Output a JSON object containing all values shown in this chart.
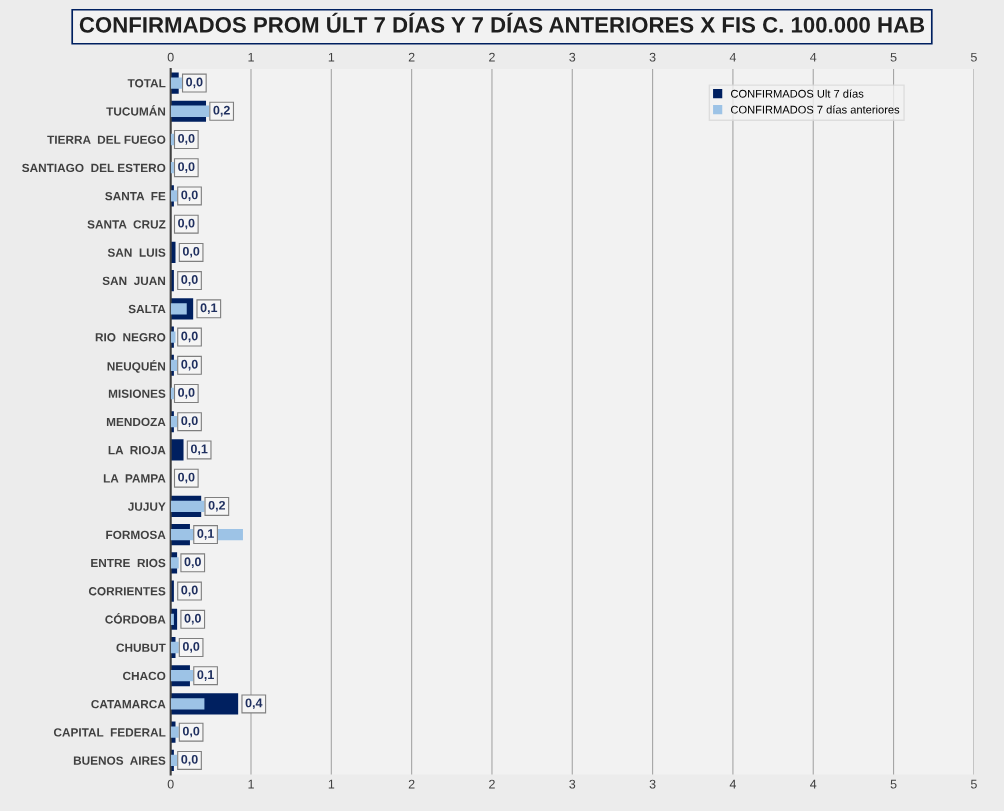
{
  "chart_data": {
    "type": "bar",
    "orientation": "horizontal",
    "title": "CONFIRMADOS PROM ÚLT 7 DÍAS Y 7 DÍAS ANTERIORES X FIS C. 100.000 HAB",
    "categories": [
      "TOTAL",
      "TUCUMÁN",
      "TIERRA  DEL FUEGO",
      "SANTIAGO  DEL ESTERO",
      "SANTA  FE",
      "SANTA  CRUZ",
      "SAN  LUIS",
      "SAN  JUAN",
      "SALTA",
      "RIO  NEGRO",
      "NEUQUÉN",
      "MISIONES",
      "MENDOZA",
      "LA  RIOJA",
      "LA  PAMPA",
      "JUJUY",
      "FORMOSA",
      "ENTRE  RIOS",
      "CORRIENTES",
      "CÓRDOBA",
      "CHUBUT",
      "CHACO",
      "CATAMARCA",
      "CAPITAL  FEDERAL",
      "BUENOS  AIRES"
    ],
    "series": [
      {
        "name": "CONFIRMADOS Ult 7 días",
        "color": "#002060",
        "values": [
          0.05,
          0.22,
          0.0,
          0.0,
          0.02,
          0.0,
          0.03,
          0.02,
          0.14,
          0.02,
          0.02,
          0.0,
          0.02,
          0.08,
          0.0,
          0.19,
          0.12,
          0.04,
          0.02,
          0.04,
          0.03,
          0.12,
          0.42,
          0.03,
          0.02
        ],
        "value_labels": [
          "0,0",
          "0,2",
          "0,0",
          "0,0",
          "0,0",
          "0,0",
          "0,0",
          "0,0",
          "0,1",
          "0,0",
          "0,0",
          "0,0",
          "0,0",
          "0,1",
          "0,0",
          "0,2",
          "0,1",
          "0,0",
          "0,0",
          "0,0",
          "0,0",
          "0,1",
          "0,4",
          "0,0",
          "0,0"
        ]
      },
      {
        "name": "CONFIRMADOS 7 días anteriores",
        "color": "#9dc3e6",
        "values": [
          0.07,
          0.24,
          0.03,
          0.02,
          0.04,
          0.0,
          null,
          null,
          0.1,
          0.03,
          0.04,
          0.02,
          0.04,
          0.0,
          0.0,
          0.21,
          0.45,
          0.05,
          null,
          0.02,
          0.05,
          0.14,
          0.21,
          0.05,
          0.04
        ]
      }
    ],
    "xlim": [
      0,
      5
    ],
    "xticks": [
      0,
      {
        "value": 0.5,
        "label": "1"
      },
      {
        "value": 1,
        "label": "1"
      },
      {
        "value": 1.5,
        "label": "2"
      },
      {
        "value": 2,
        "label": "2"
      },
      {
        "value": 2.5,
        "label": "3"
      },
      {
        "value": 3,
        "label": "3"
      },
      {
        "value": 3.5,
        "label": "4"
      },
      {
        "value": 4,
        "label": "4"
      },
      {
        "value": 4.5,
        "label": "5"
      },
      {
        "value": 5,
        "label": "5"
      }
    ],
    "x2lim": [
      0,
      5
    ],
    "x2ticks": [
      0,
      {
        "value": 0.5,
        "label": "1"
      },
      {
        "value": 1,
        "label": "1"
      },
      {
        "value": 1.5,
        "label": "2"
      },
      {
        "value": 2,
        "label": "2"
      },
      {
        "value": 2.5,
        "label": "3"
      },
      {
        "value": 3,
        "label": "3"
      },
      {
        "value": 3.5,
        "label": "4"
      },
      {
        "value": 4,
        "label": "4"
      },
      {
        "value": 4.5,
        "label": "5"
      },
      {
        "value": 5,
        "label": "5"
      }
    ],
    "grid": "x",
    "legend": "top right"
  }
}
